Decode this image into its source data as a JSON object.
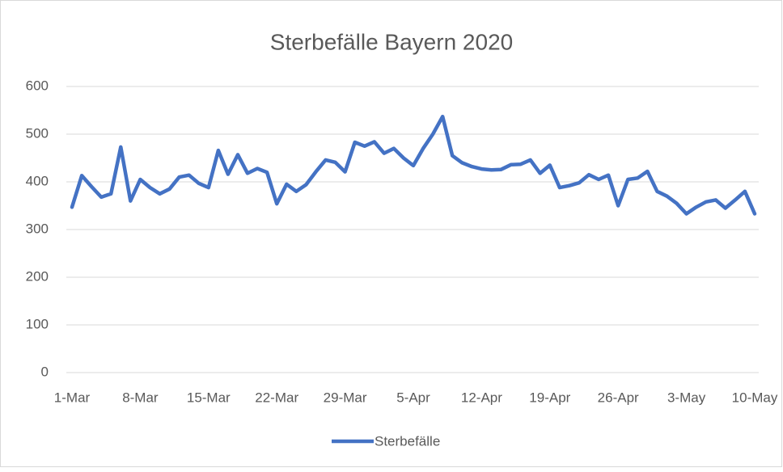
{
  "chart_data": {
    "type": "line",
    "title": "Sterbefälle Bayern 2020",
    "categories": [
      "1-Mar",
      null,
      null,
      null,
      null,
      null,
      null,
      "8-Mar",
      null,
      null,
      null,
      null,
      null,
      null,
      "15-Mar",
      null,
      null,
      null,
      null,
      null,
      null,
      "22-Mar",
      null,
      null,
      null,
      null,
      null,
      null,
      "29-Mar",
      null,
      null,
      null,
      null,
      null,
      null,
      "5-Apr",
      null,
      null,
      null,
      null,
      null,
      null,
      "12-Apr",
      null,
      null,
      null,
      null,
      null,
      null,
      "19-Apr",
      null,
      null,
      null,
      null,
      null,
      null,
      "26-Apr",
      null,
      null,
      null,
      null,
      null,
      null,
      "3-May",
      null,
      null,
      null,
      null,
      null,
      null,
      "10-May"
    ],
    "series": [
      {
        "name": "Sterbefälle",
        "color": "#4472c4",
        "values": [
          347,
          413,
          390,
          368,
          375,
          473,
          360,
          405,
          388,
          375,
          385,
          410,
          414,
          397,
          388,
          466,
          416,
          457,
          418,
          428,
          420,
          354,
          395,
          380,
          394,
          421,
          446,
          441,
          421,
          483,
          475,
          484,
          460,
          470,
          450,
          434,
          470,
          500,
          537,
          455,
          440,
          432,
          427,
          425,
          426,
          436,
          437,
          446,
          418,
          435,
          388,
          392,
          398,
          415,
          405,
          414,
          350,
          405,
          408,
          422,
          380,
          370,
          355,
          333,
          347,
          358,
          362,
          345,
          362,
          380,
          333
        ]
      }
    ],
    "ylim": [
      0,
      600
    ],
    "yticks": [
      0,
      100,
      200,
      300,
      400,
      500,
      600
    ],
    "grid": true,
    "legend": "bottom"
  }
}
